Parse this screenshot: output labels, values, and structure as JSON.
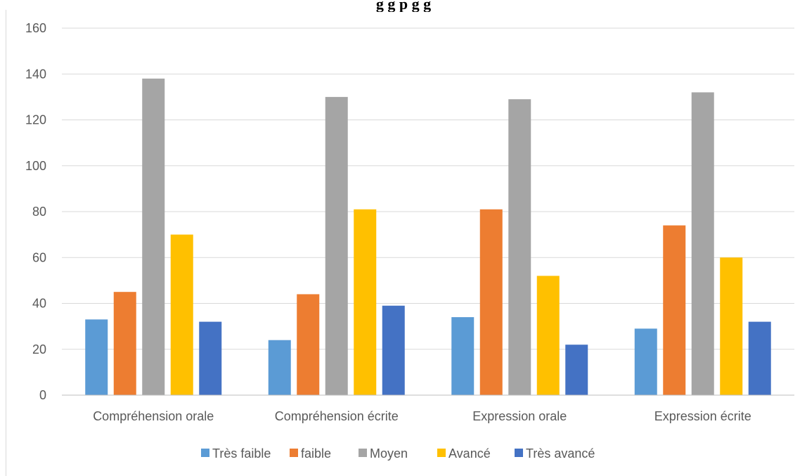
{
  "chart_data": {
    "type": "bar",
    "title": "",
    "categories": [
      "Compréhension orale",
      "Compréhension écrite",
      "Expression orale",
      "Expression écrite"
    ],
    "series": [
      {
        "name": "Très faible",
        "color": "#5b9bd5",
        "values": [
          33,
          24,
          34,
          29
        ]
      },
      {
        "name": "faible",
        "color": "#ed7d31",
        "values": [
          45,
          44,
          81,
          74
        ]
      },
      {
        "name": "Moyen",
        "color": "#a5a5a5",
        "values": [
          138,
          130,
          129,
          132
        ]
      },
      {
        "name": "Avancé",
        "color": "#ffc000",
        "values": [
          70,
          81,
          52,
          60
        ]
      },
      {
        "name": "Très avancé",
        "color": "#4472c4",
        "values": [
          32,
          39,
          22,
          32
        ]
      }
    ],
    "ylim": [
      0,
      160
    ],
    "yticks": [
      0,
      20,
      40,
      60,
      80,
      100,
      120,
      140,
      160
    ],
    "grid": true,
    "legend_position": "bottom",
    "xlabel": "",
    "ylabel": ""
  }
}
